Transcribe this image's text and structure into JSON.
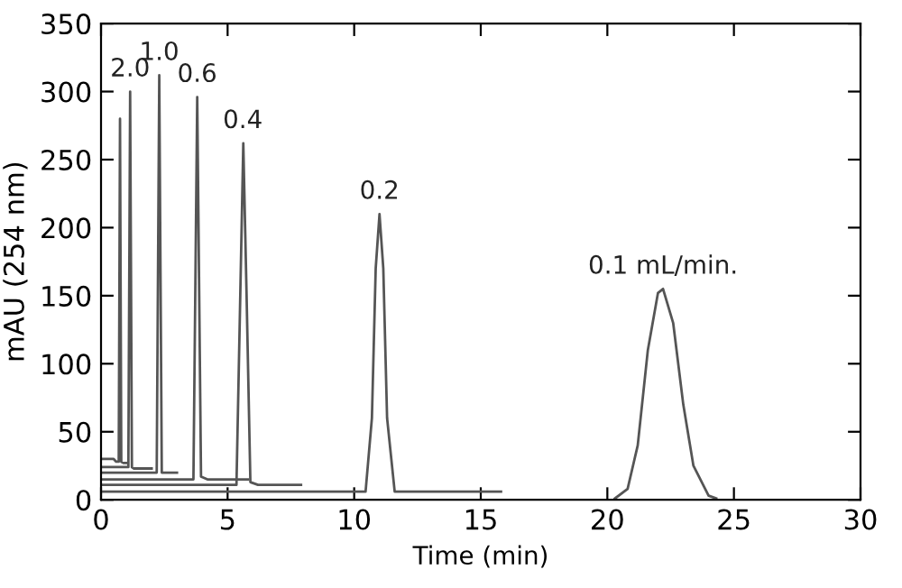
{
  "chart_data": {
    "type": "line",
    "xlabel": "Time (min)",
    "ylabel": "mAU (254 nm)",
    "xlim": [
      0,
      30
    ],
    "xticks": [
      0,
      5,
      10,
      15,
      20,
      25,
      30
    ],
    "ylim": [
      0,
      350
    ],
    "yticks": [
      0,
      50,
      100,
      150,
      200,
      250,
      300,
      350
    ],
    "grid": false,
    "legend": false,
    "marker": "none",
    "line_style": "solid",
    "series": [
      {
        "color": "#555555",
        "x": [
          0,
          0.5,
          0.6,
          0.7,
          0.75,
          0.8,
          0.9,
          1.0
        ],
        "values": [
          30,
          30,
          28,
          28,
          280,
          28,
          27,
          27
        ]
      },
      {
        "color": "#555555",
        "x": [
          0,
          1.08,
          1.15,
          1.22,
          1.3,
          2.0
        ],
        "values": [
          24,
          24,
          300,
          24,
          23,
          23
        ]
      },
      {
        "color": "#555555",
        "x": [
          0,
          2.2,
          2.3,
          2.4,
          3.0
        ],
        "values": [
          20,
          20,
          312,
          20,
          20
        ]
      },
      {
        "color": "#555555",
        "x": [
          0,
          3.65,
          3.8,
          3.95,
          4.2,
          5.8
        ],
        "values": [
          15,
          15,
          296,
          17,
          15,
          15
        ]
      },
      {
        "color": "#555555",
        "x": [
          0,
          5.35,
          5.5,
          5.62,
          5.75,
          5.9,
          6.2,
          7.9
        ],
        "values": [
          11,
          11,
          150,
          262,
          150,
          13,
          11,
          11
        ]
      },
      {
        "color": "#555555",
        "x": [
          0,
          10.45,
          10.7,
          10.85,
          11.0,
          11.15,
          11.3,
          11.6,
          15.8
        ],
        "values": [
          6,
          6,
          60,
          170,
          210,
          170,
          60,
          6,
          6
        ]
      },
      {
        "color": "#555555",
        "x": [
          20.3,
          20.8,
          21.2,
          21.6,
          22.0,
          22.2,
          22.6,
          23.0,
          23.4,
          24.0,
          24.3
        ],
        "values": [
          1,
          8,
          40,
          110,
          152,
          155,
          130,
          70,
          25,
          3,
          1
        ]
      }
    ],
    "annotations": [
      {
        "text": "2.0",
        "x": 1.15,
        "y": 300
      },
      {
        "text": "1.0",
        "x": 2.3,
        "y": 312
      },
      {
        "text": "0.6",
        "x": 3.8,
        "y": 296
      },
      {
        "text": "0.4",
        "x": 5.6,
        "y": 262
      },
      {
        "text": "0.2",
        "x": 11.0,
        "y": 210
      },
      {
        "text": "0.1 mL/min.",
        "x": 22.2,
        "y": 155
      }
    ]
  }
}
